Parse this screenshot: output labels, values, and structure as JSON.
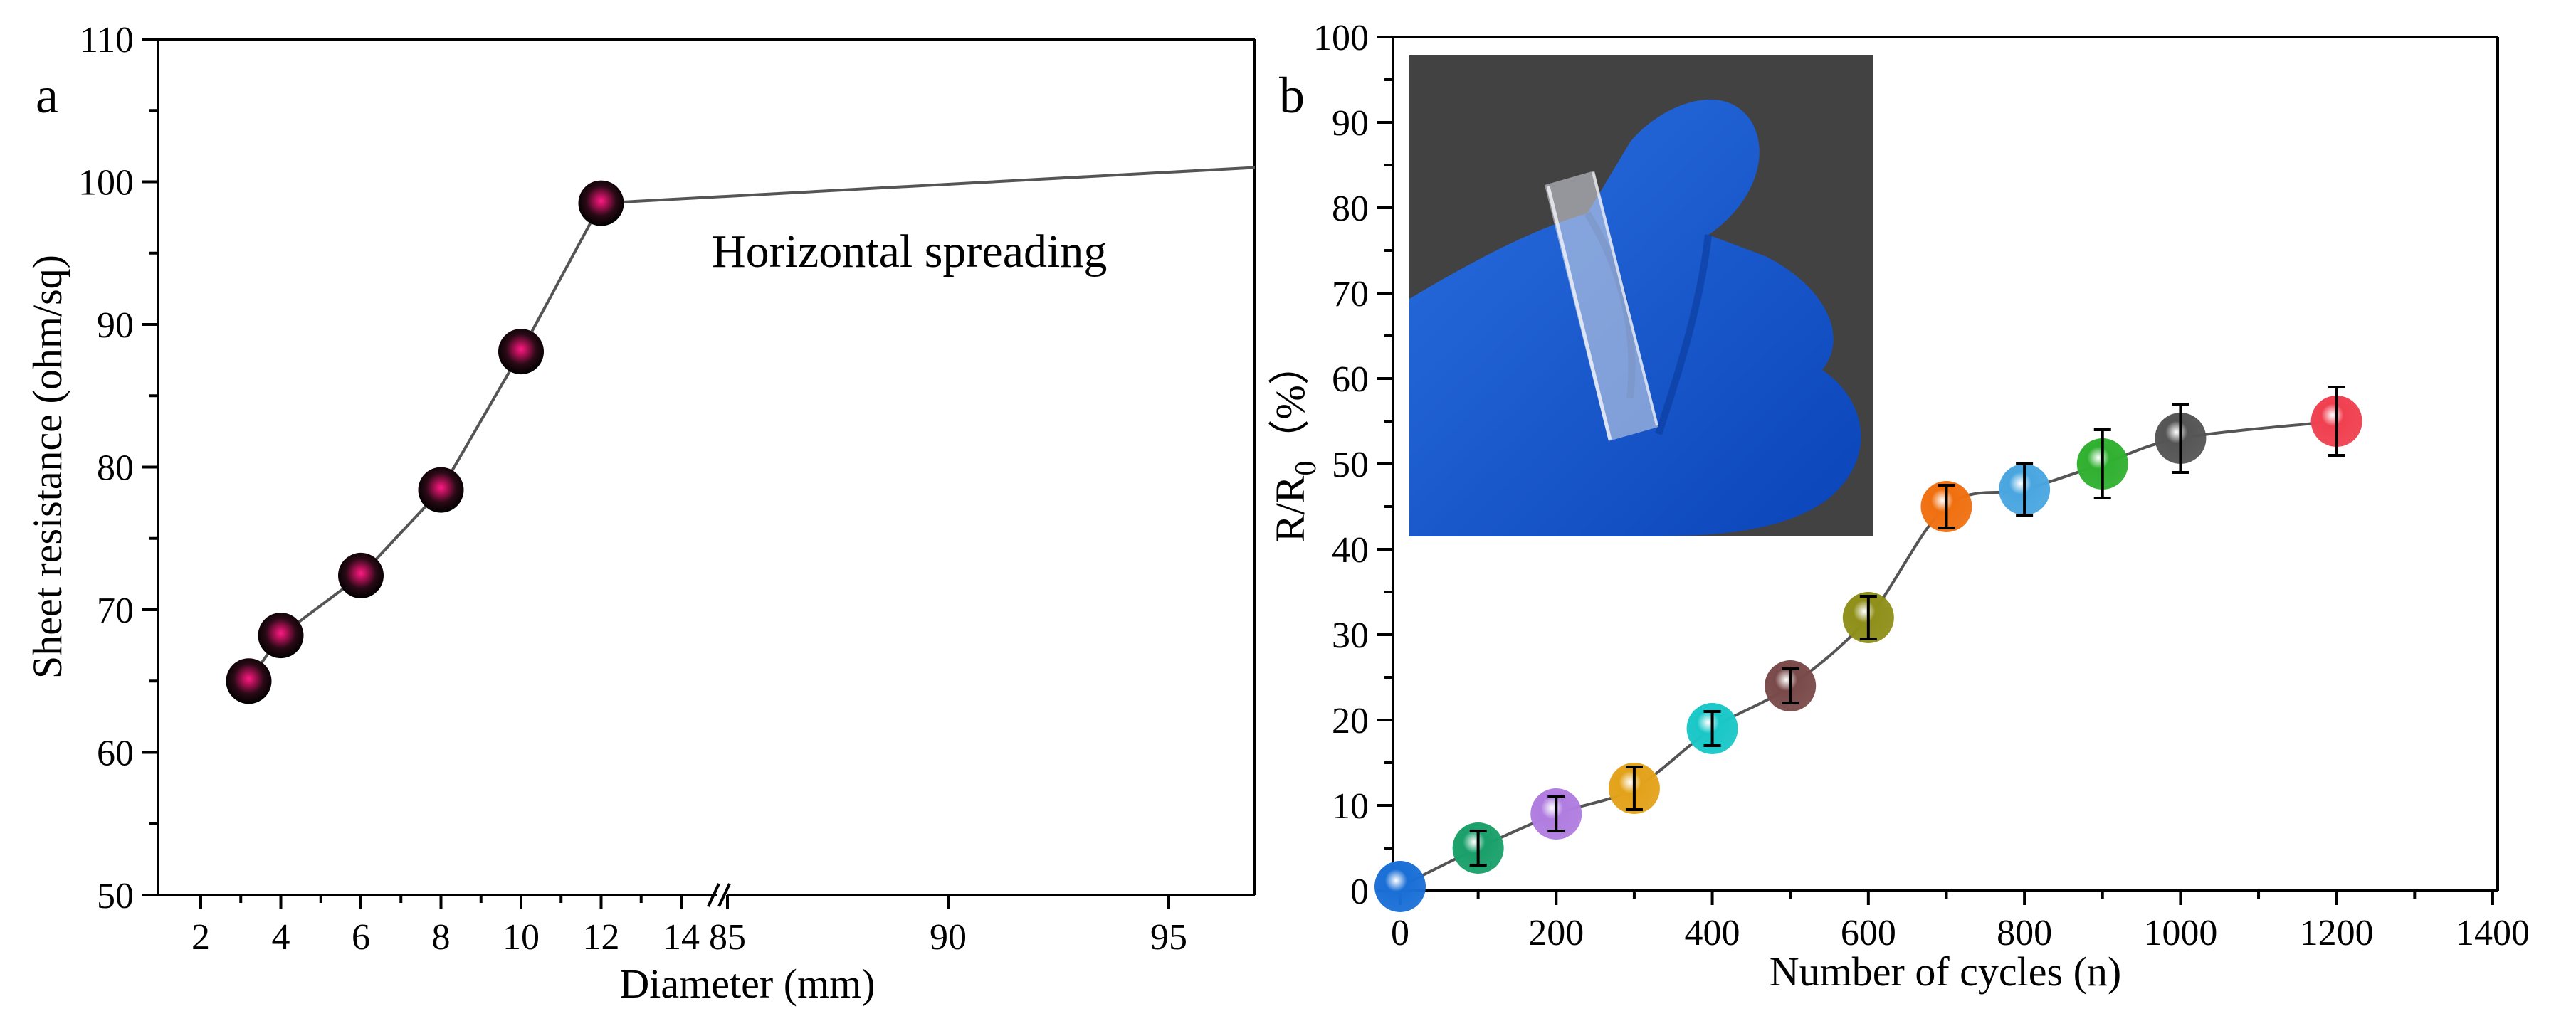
{
  "chart_data": [
    {
      "panel": "a",
      "type": "scatter",
      "xlabel": "Diameter (mm)",
      "ylabel": "Sheet resistance (ohm/sq)",
      "ylim": [
        50,
        110
      ],
      "y_ticks": [
        50,
        60,
        70,
        80,
        90,
        100,
        110
      ],
      "x_ticks_left": [
        2,
        4,
        6,
        8,
        10,
        12,
        14
      ],
      "x_ticks_right": [
        85,
        90,
        95
      ],
      "x_break": true,
      "series": [
        {
          "name": "diameter",
          "x": [
            3.2,
            4,
            6,
            8,
            10,
            12
          ],
          "y": [
            65,
            68.2,
            72.4,
            78.4,
            88.1,
            98.5
          ]
        }
      ],
      "horizontal_line_y": [
        98.5,
        101
      ],
      "annotation": "Horizontal spreading",
      "marker_color": "#e8186e"
    },
    {
      "panel": "b",
      "type": "scatter",
      "xlabel": "Number of cycles (n)",
      "ylabel_main": "R/R",
      "ylabel_sub": "0",
      "ylabel_unit": "（%）",
      "xlim": [
        0,
        1400
      ],
      "ylim": [
        0,
        100
      ],
      "x_ticks": [
        0,
        200,
        400,
        600,
        800,
        1000,
        1200,
        1400
      ],
      "y_ticks": [
        0,
        10,
        20,
        30,
        40,
        50,
        60,
        70,
        80,
        90,
        100
      ],
      "series": [
        {
          "name": "R/R0",
          "x": [
            0,
            100,
            200,
            300,
            400,
            500,
            600,
            700,
            800,
            900,
            1000,
            1200
          ],
          "y": [
            0.5,
            5,
            9,
            12,
            19,
            24,
            32,
            45,
            47,
            50,
            53,
            55
          ],
          "err": [
            0,
            2,
            2,
            2.5,
            2,
            2,
            2.5,
            2.5,
            3,
            4,
            4,
            4
          ],
          "colors": [
            "#1a6fd6",
            "#1aa06a",
            "#b07de0",
            "#e3a21a",
            "#1ac7c7",
            "#7a4a4a",
            "#8f8f1a",
            "#f07010",
            "#4aa6e0",
            "#30b030",
            "#555555",
            "#f04050"
          ]
        }
      ],
      "inset": "photo of flexible film held in blue gloved fingers"
    }
  ]
}
